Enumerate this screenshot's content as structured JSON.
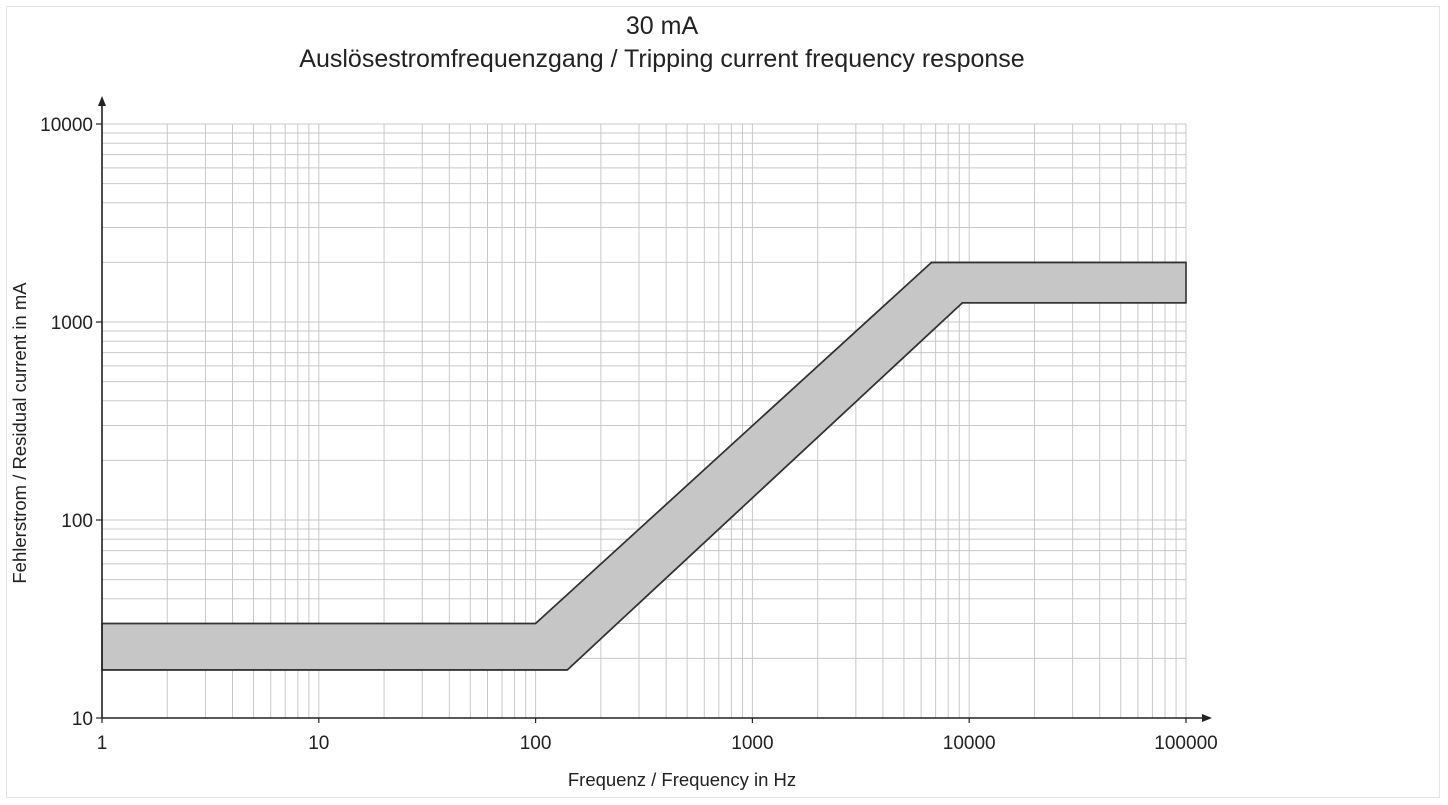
{
  "chart_data": {
    "type": "area",
    "title": "30 mA",
    "subtitle": "Auslösestromfrequenzgang / Tripping current frequency response",
    "xlabel": "Frequenz /  Frequency in Hz",
    "ylabel": "Fehlerstrom /  Residual current in mA",
    "xscale": "log",
    "yscale": "log",
    "xlim": [
      1,
      100000
    ],
    "ylim": [
      10,
      10000
    ],
    "x_tick_labels": [
      "1",
      "10",
      "100",
      "1000",
      "10000",
      "100000"
    ],
    "y_tick_labels": [
      "10",
      "100",
      "1000",
      "10000"
    ],
    "grid": true,
    "band_fill_color": "#c6c6c6",
    "band_edge_color": "#333333",
    "series": [
      {
        "role": "upper",
        "x": [
          1,
          100,
          6700,
          100000
        ],
        "y": [
          30,
          30,
          2000,
          2000
        ]
      },
      {
        "role": "lower",
        "x": [
          1,
          140,
          9300,
          100000
        ],
        "y": [
          17.5,
          17.5,
          1250,
          1250
        ]
      }
    ]
  }
}
